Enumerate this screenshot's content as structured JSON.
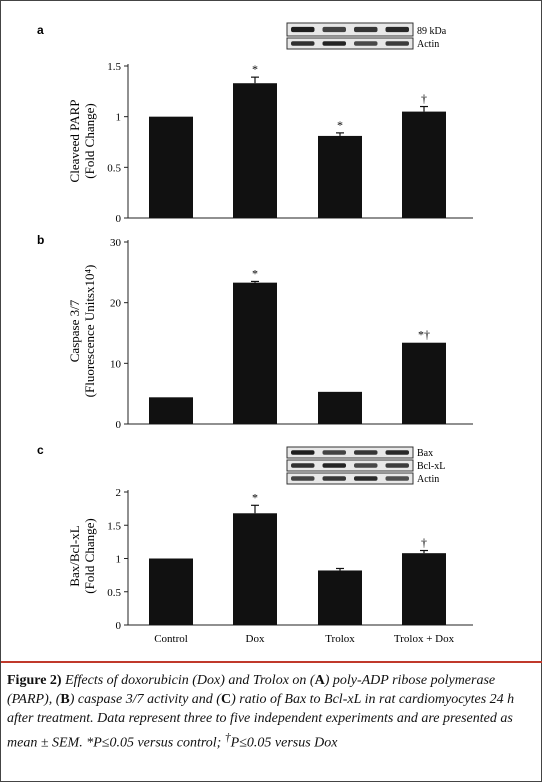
{
  "panel_a": {
    "letter": "a",
    "ylabel_line1": "Cleaveed PARP",
    "ylabel_line2": "(Fold Change)",
    "blot_labels": [
      "89 kDa",
      "Actin"
    ],
    "markers": [
      "*",
      "*",
      "†"
    ]
  },
  "panel_b": {
    "letter": "b",
    "ylabel_line1": "Caspase 3/7",
    "ylabel_line2": "(Fluorescence Unitsx10⁴)",
    "markers": [
      "*",
      "*†"
    ]
  },
  "panel_c": {
    "letter": "c",
    "ylabel_line1": "Bax/Bcl-xL",
    "ylabel_line2": "(Fold Change)",
    "blot_labels": [
      "Bax",
      "Bcl-xL",
      "Actin"
    ],
    "markers": [
      "*",
      "†"
    ]
  },
  "caption": {
    "label": "Figure 2)",
    "text_1": "Effects of doxorubicin (Dox) and Trolox on (",
    "A": "A",
    "text_2": ") poly-ADP ribose polymerase (PARP), (",
    "B": "B",
    "text_3": ") caspase 3/7 activity and (",
    "C": "C",
    "text_4": ") ratio of Bax to Bcl-xL in rat cardiomyocytes 24 h after treatment. Data represent three to five independent experiments and are presented as mean ± SEM. *P≤0.05 versus control; ",
    "dagger": "†",
    "text_5": "P≤0.05 versus Dox"
  },
  "colors": {
    "bar": "#111111",
    "caption_rule": "#c0392b"
  },
  "chart_data": [
    {
      "type": "bar",
      "panel": "a",
      "categories": [
        "Control",
        "Dox",
        "Trolox",
        "Trolox + Dox"
      ],
      "values": [
        1.0,
        1.33,
        0.81,
        1.05
      ],
      "errors": [
        0,
        0.06,
        0.03,
        0.05
      ],
      "ylabel": "Cleaveed PARP (Fold Change)",
      "ylim": [
        0,
        1.5
      ],
      "yticks": [
        0,
        0.5,
        1,
        1.5
      ],
      "ytick_labels": [
        "0",
        "0.5",
        "1",
        "1.5"
      ],
      "significance": [
        "",
        "*",
        "*",
        "†"
      ],
      "grid": false
    },
    {
      "type": "bar",
      "panel": "b",
      "categories": [
        "Control",
        "Dox",
        "Trolox",
        "Trolox + Dox"
      ],
      "values": [
        4.4,
        23.3,
        5.3,
        13.4
      ],
      "errors": [
        0,
        0.2,
        0,
        0
      ],
      "ylabel": "Caspase 3/7 (Fluorescence Unitsx10⁴)",
      "ylim": [
        0,
        30
      ],
      "yticks": [
        0,
        10,
        20,
        30
      ],
      "ytick_labels": [
        "0",
        "10",
        "20",
        "30"
      ],
      "significance": [
        "",
        "*",
        "",
        "*†"
      ],
      "grid": false
    },
    {
      "type": "bar",
      "panel": "c",
      "categories": [
        "Control",
        "Dox",
        "Trolox",
        "Trolox + Dox"
      ],
      "values": [
        1.0,
        1.68,
        0.82,
        1.08
      ],
      "errors": [
        0,
        0.12,
        0.03,
        0.04
      ],
      "ylabel": "Bax/Bcl-xL (Fold Change)",
      "ylim": [
        0,
        2
      ],
      "yticks": [
        0,
        0.5,
        1,
        1.5,
        2
      ],
      "ytick_labels": [
        "0",
        "0.5",
        "1",
        "1.5",
        "2"
      ],
      "significance": [
        "",
        "*",
        "",
        "†"
      ],
      "grid": false
    }
  ]
}
